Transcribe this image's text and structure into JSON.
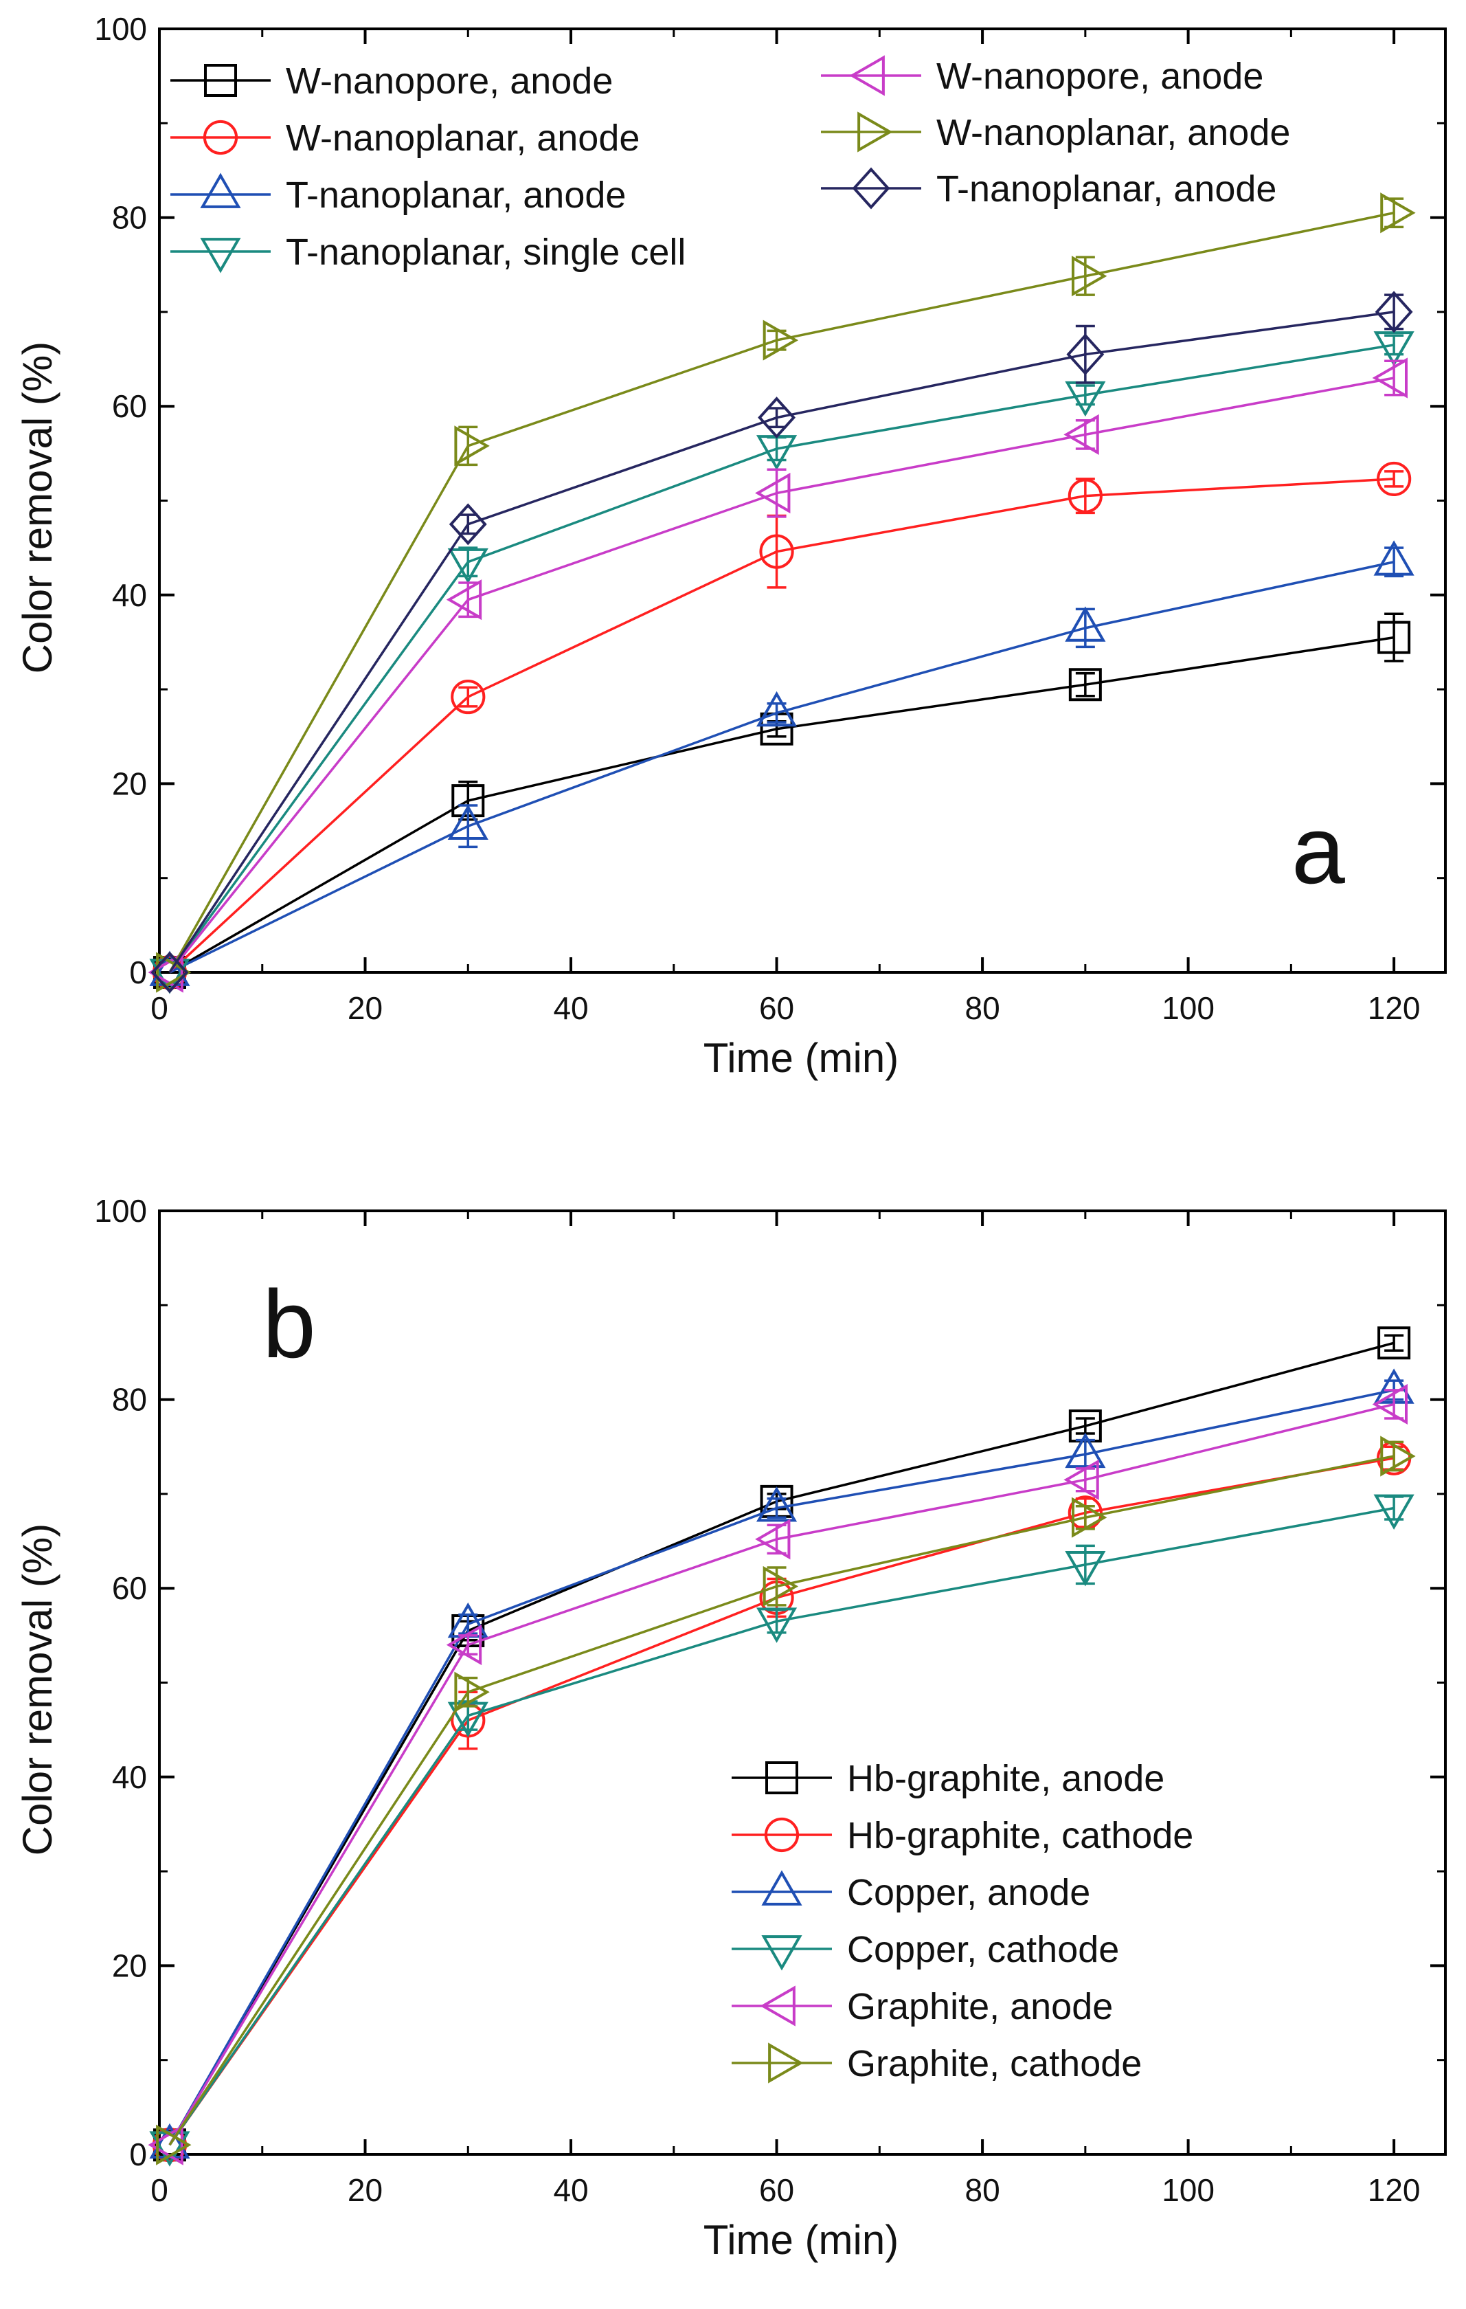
{
  "chart_data": [
    {
      "type": "line",
      "panel_label": "a",
      "xlabel": "Time (min)",
      "ylabel": "Color removal (%)",
      "xlim": [
        0,
        125
      ],
      "ylim": [
        0,
        100
      ],
      "x_ticks": [
        0,
        20,
        40,
        60,
        80,
        100,
        120
      ],
      "y_ticks": [
        0,
        20,
        40,
        60,
        80,
        100
      ],
      "legend_position": "top-left, two columns",
      "series": [
        {
          "name": "W-nanopore, anode",
          "marker": "square",
          "color": "#000000",
          "x": [
            1,
            30,
            60,
            90,
            120
          ],
          "y": [
            0,
            18.2,
            25.8,
            30.5,
            35.5
          ],
          "err": [
            0,
            2.0,
            0.8,
            1.2,
            2.5
          ]
        },
        {
          "name": "W-nanoplanar, anode",
          "marker": "circle",
          "color": "#ff2020",
          "x": [
            1,
            30,
            60,
            90,
            120
          ],
          "y": [
            0,
            29.2,
            44.6,
            50.5,
            52.3
          ],
          "err": [
            0,
            1.0,
            3.8,
            1.8,
            0.8
          ]
        },
        {
          "name": "T-nanoplanar, anode",
          "marker": "triangle-up",
          "color": "#1f4fb4",
          "x": [
            1,
            30,
            60,
            90,
            120
          ],
          "y": [
            0,
            15.5,
            27.5,
            36.5,
            43.5
          ],
          "err": [
            0,
            2.2,
            1.0,
            2.0,
            1.5
          ]
        },
        {
          "name": "T-nanoplanar, single cell",
          "marker": "triangle-down",
          "color": "#1a8a80",
          "x": [
            1,
            30,
            60,
            90,
            120
          ],
          "y": [
            0,
            43.5,
            55.5,
            61.2,
            66.5
          ],
          "err": [
            0,
            1.5,
            1.2,
            1.0,
            1.0
          ]
        },
        {
          "name": "W-nanopore, anode",
          "marker": "triangle-left",
          "color": "#c83cc8",
          "x": [
            1,
            30,
            60,
            90,
            120
          ],
          "y": [
            0,
            39.5,
            50.8,
            57.0,
            63.0
          ],
          "err": [
            0,
            1.8,
            2.5,
            1.5,
            1.8
          ]
        },
        {
          "name": "W-nanoplanar, anode",
          "marker": "triangle-right",
          "color": "#7a8a1a",
          "x": [
            1,
            30,
            60,
            90,
            120
          ],
          "y": [
            0,
            55.8,
            67.0,
            73.8,
            80.5
          ],
          "err": [
            0,
            2.0,
            1.0,
            2.0,
            1.5
          ]
        },
        {
          "name": "T-nanoplanar, anode",
          "marker": "diamond",
          "color": "#262660",
          "x": [
            1,
            30,
            60,
            90,
            120
          ],
          "y": [
            0,
            47.5,
            58.8,
            65.5,
            70.0
          ],
          "err": [
            0,
            1.0,
            1.0,
            3.0,
            1.8
          ]
        }
      ]
    },
    {
      "type": "line",
      "panel_label": "b",
      "xlabel": "Time (min)",
      "ylabel": "Color removal (%)",
      "xlim": [
        0,
        125
      ],
      "ylim": [
        0,
        100
      ],
      "x_ticks": [
        0,
        20,
        40,
        60,
        80,
        100,
        120
      ],
      "y_ticks": [
        0,
        20,
        40,
        60,
        80,
        100
      ],
      "legend_position": "bottom-right",
      "series": [
        {
          "name": "Hb-graphite, anode",
          "marker": "square",
          "color": "#000000",
          "x": [
            1,
            30,
            60,
            90,
            120
          ],
          "y": [
            1,
            55.5,
            69.2,
            77.2,
            86.0
          ],
          "err": [
            0,
            1.0,
            0.8,
            0.8,
            0.8
          ]
        },
        {
          "name": "Hb-graphite, cathode",
          "marker": "circle",
          "color": "#ff2020",
          "x": [
            1,
            30,
            60,
            90,
            120
          ],
          "y": [
            1,
            46.0,
            59.0,
            68.0,
            73.8
          ],
          "err": [
            0,
            3.0,
            2.0,
            1.5,
            1.2
          ]
        },
        {
          "name": "Copper, anode",
          "marker": "triangle-up",
          "color": "#1f4fb4",
          "x": [
            1,
            30,
            60,
            90,
            120
          ],
          "y": [
            1,
            56.2,
            68.5,
            74.2,
            81.0
          ],
          "err": [
            0,
            1.0,
            1.0,
            1.5,
            1.0
          ]
        },
        {
          "name": "Copper, cathode",
          "marker": "triangle-down",
          "color": "#1a8a80",
          "x": [
            1,
            30,
            60,
            90,
            120
          ],
          "y": [
            1,
            46.5,
            56.5,
            62.5,
            68.5
          ],
          "err": [
            0,
            1.5,
            1.2,
            2.0,
            1.2
          ]
        },
        {
          "name": "Graphite, anode",
          "marker": "triangle-left",
          "color": "#c83cc8",
          "x": [
            1,
            30,
            60,
            90,
            120
          ],
          "y": [
            1,
            54.0,
            65.2,
            71.5,
            79.5
          ],
          "err": [
            0,
            1.0,
            1.5,
            1.2,
            1.5
          ]
        },
        {
          "name": "Graphite, cathode",
          "marker": "triangle-right",
          "color": "#7a8a1a",
          "x": [
            1,
            30,
            60,
            90,
            120
          ],
          "y": [
            1,
            49.0,
            60.2,
            67.5,
            74.0
          ],
          "err": [
            0,
            1.5,
            2.0,
            1.2,
            1.5
          ]
        }
      ]
    }
  ]
}
